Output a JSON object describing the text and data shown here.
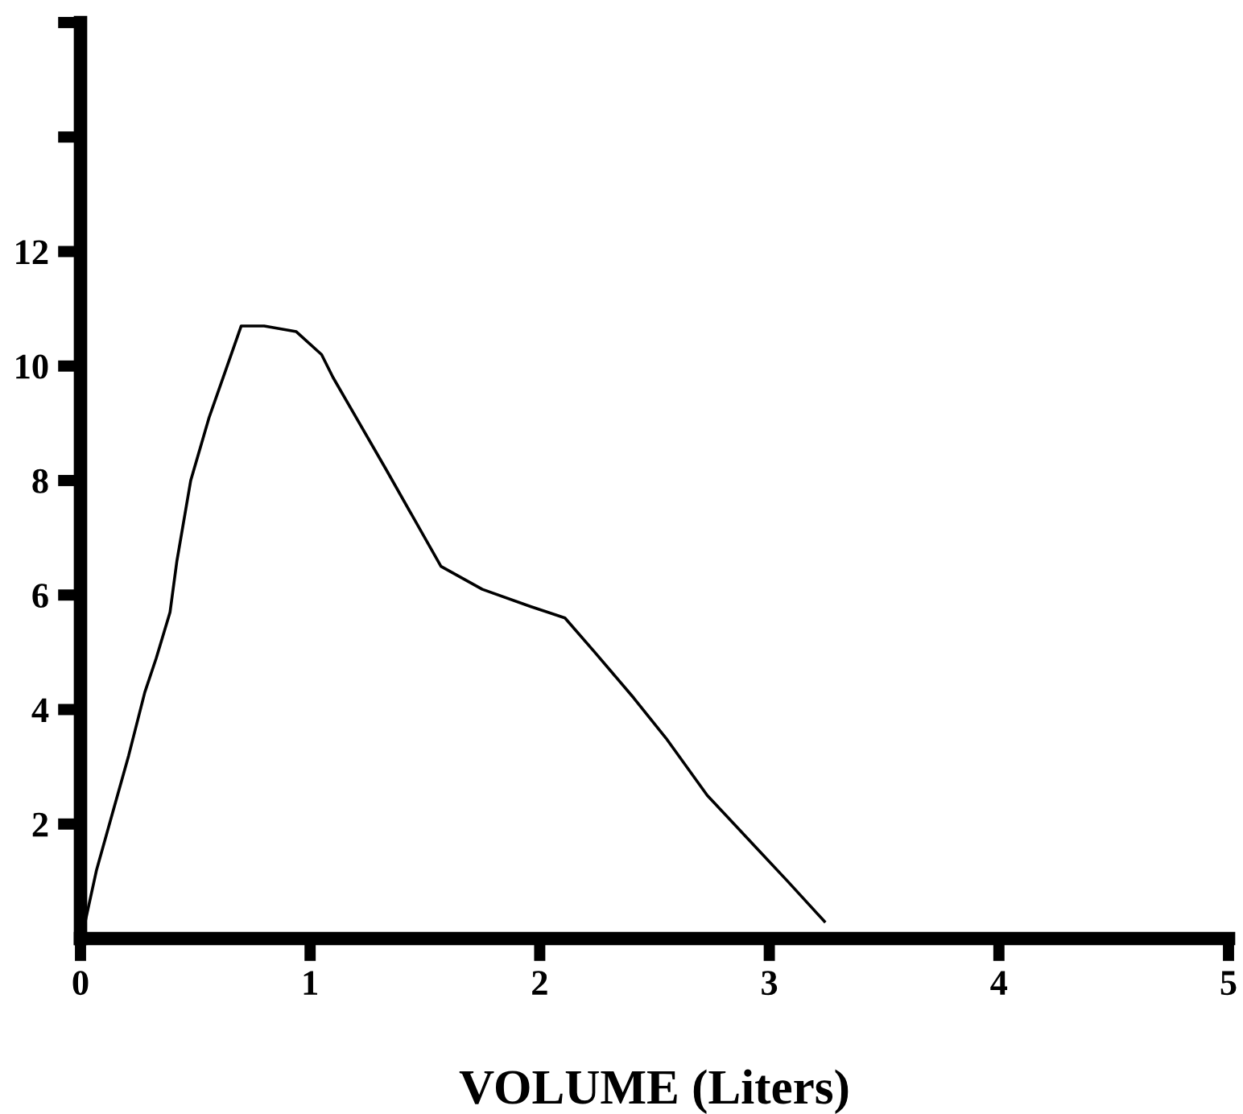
{
  "chart_data": {
    "type": "line",
    "xlabel": "VOLUME (Liters)",
    "series": [
      {
        "color": "#000000",
        "x": [
          0.01,
          0.07,
          0.14,
          0.21,
          0.28,
          0.33,
          0.39,
          0.42,
          0.48,
          0.56,
          0.63,
          0.7,
          0.8,
          0.94,
          1.05,
          1.1,
          1.33,
          1.57,
          1.75,
          1.96,
          2.11,
          2.24,
          2.41,
          2.55,
          2.73,
          2.94,
          3.08,
          3.24
        ],
        "values": [
          0.1,
          1.2,
          2.2,
          3.2,
          4.3,
          4.9,
          5.7,
          6.6,
          8.0,
          9.1,
          9.9,
          10.7,
          10.7,
          10.6,
          10.2,
          9.8,
          8.2,
          6.5,
          6.1,
          5.8,
          5.6,
          5.0,
          4.2,
          3.5,
          2.5,
          1.6,
          1.0,
          0.3
        ]
      }
    ],
    "xlim": [
      0,
      5
    ],
    "xticks": [
      0,
      1,
      2,
      3,
      4,
      5
    ],
    "ylim": [
      0,
      16
    ],
    "yticks": [
      2,
      4,
      6,
      8,
      10,
      12,
      {
        "value": 14,
        "label": null
      },
      {
        "value": 16,
        "label": null
      }
    ],
    "grid": false,
    "legend": false,
    "marker": "none",
    "line_style": "solid"
  }
}
